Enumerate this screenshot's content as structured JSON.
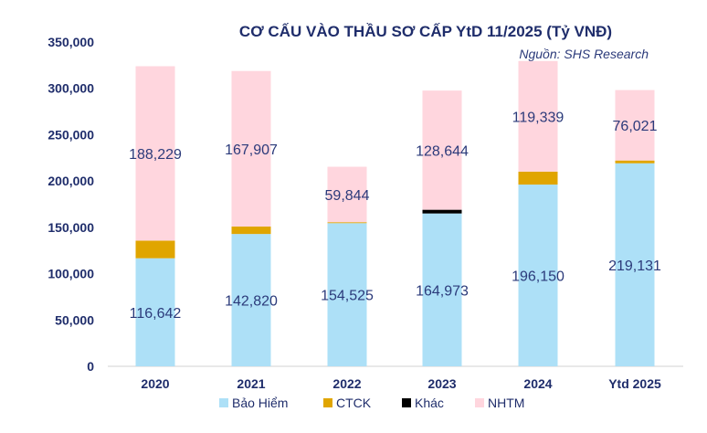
{
  "chart_data": {
    "type": "bar",
    "stacked": true,
    "title": "CƠ CẤU VÀO THẦU SƠ CẤP YtD 11/2025  (Tỷ VNĐ)",
    "source": "Nguồn: SHS Research",
    "categories": [
      "2020",
      "2021",
      "2022",
      "2023",
      "2024",
      "Ytd 2025"
    ],
    "ylim": [
      0,
      350000
    ],
    "yticks": [
      0,
      50000,
      100000,
      150000,
      200000,
      250000,
      300000,
      350000
    ],
    "ytick_labels": [
      "0",
      "50,000",
      "100,000",
      "150,000",
      "200,000",
      "250,000",
      "300,000",
      "350,000"
    ],
    "grid": false,
    "legend": "bottom",
    "series": [
      {
        "name": "Bảo Hiểm",
        "color": "#ade0f7",
        "values": [
          116642,
          142820,
          154525,
          164973,
          196150,
          219131
        ],
        "labels": [
          "116,642",
          "142,820",
          "154,525",
          "164,973",
          "196,150",
          "219,131"
        ]
      },
      {
        "name": "CTCK",
        "color": "#e0a500",
        "values": [
          19000,
          8000,
          1000,
          0,
          14000,
          3000
        ]
      },
      {
        "name": "Khác",
        "color": "#000000",
        "values": [
          0,
          0,
          0,
          4000,
          0,
          0
        ]
      },
      {
        "name": "NHTM",
        "color": "#ffd6de",
        "values": [
          188229,
          167907,
          59844,
          128644,
          119339,
          76021
        ],
        "labels": [
          "188,229",
          "167,907",
          "59,844",
          "128,644",
          "119,339",
          "76,021"
        ]
      }
    ],
    "label_color": "#2b3a7a",
    "title_color": "#1f2d6b"
  }
}
